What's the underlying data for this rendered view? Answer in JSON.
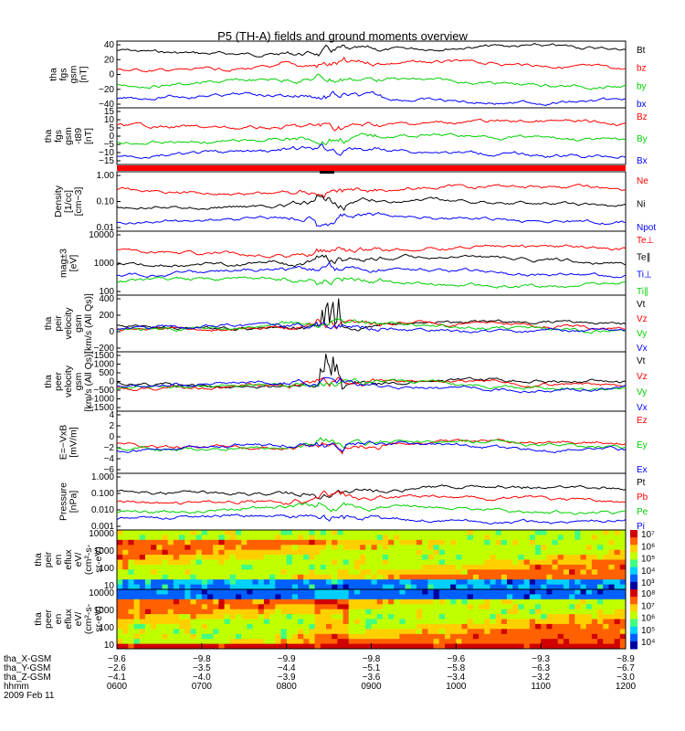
{
  "title": "P5 (TH-A) fields and ground moments overview",
  "colors": {
    "black": "#000000",
    "red": "#ff0000",
    "green": "#00d000",
    "blue": "#0000ff"
  },
  "chart_data": [
    {
      "type": "line",
      "id": "p1",
      "ylabel": [
        "tha",
        "fgs",
        "gsm",
        "[nT]"
      ],
      "ylim": [
        -40,
        40
      ],
      "yticks": [
        "40",
        "20",
        "0",
        "−20",
        "−40"
      ],
      "series": [
        {
          "name": "Bt",
          "color": "black",
          "base": 28
        },
        {
          "name": "bz",
          "color": "red",
          "base": 8
        },
        {
          "name": "by",
          "color": "green",
          "base": -8
        },
        {
          "name": "bx",
          "color": "blue",
          "base": -20
        }
      ]
    },
    {
      "type": "line",
      "id": "p2",
      "ylabel": [
        "tha",
        "fgs",
        "gsm",
        "-t89",
        "[nT]"
      ],
      "ylim": [
        -15,
        15
      ],
      "yticks": [
        "15",
        "10",
        "5",
        "0",
        "−5",
        "−10",
        "−15"
      ],
      "series": [
        {
          "name": "Bz",
          "color": "red"
        },
        {
          "name": "By",
          "color": "green"
        },
        {
          "name": "Bx",
          "color": "blue"
        }
      ]
    },
    {
      "type": "line",
      "id": "p3",
      "ylabel": [
        "Density",
        "[1/cc]",
        "[cm−3]"
      ],
      "ylim": [
        0.01,
        1
      ],
      "log": true,
      "yticks": [
        "1.00",
        "0.10",
        "0.01"
      ],
      "series": [
        {
          "name": "Ne",
          "color": "red"
        },
        {
          "name": "Ni",
          "color": "black"
        },
        {
          "name": "Npot",
          "color": "blue"
        }
      ]
    },
    {
      "type": "line",
      "id": "p4",
      "ylabel": [
        "mag±3",
        "[eV]"
      ],
      "ylim": [
        100,
        10000
      ],
      "log": true,
      "yticks": [
        "10000",
        "1000",
        "100"
      ],
      "series": [
        {
          "name": "Te⊥",
          "color": "red"
        },
        {
          "name": "Te∥",
          "color": "black"
        },
        {
          "name": "Ti⊥",
          "color": "blue"
        },
        {
          "name": "Ti∥",
          "color": "green"
        }
      ]
    },
    {
      "type": "line",
      "id": "p5",
      "ylabel": [
        "tha",
        "peir",
        "velocity",
        "gsm",
        "[km/s (All Qs)]"
      ],
      "ylim": [
        -200,
        600
      ],
      "yticks": [
        "400",
        "200",
        "0",
        "−200"
      ],
      "series": [
        {
          "name": "Vt",
          "color": "black"
        },
        {
          "name": "Vz",
          "color": "red"
        },
        {
          "name": "Vy",
          "color": "green"
        },
        {
          "name": "Vx",
          "color": "blue"
        }
      ]
    },
    {
      "type": "line",
      "id": "p6",
      "ylabel": [
        "tha",
        "peer",
        "velocity",
        "gsm",
        "[km/s (All Qs)]"
      ],
      "ylim": [
        -1500,
        1500
      ],
      "yticks": [
        "1500",
        "1000",
        "500",
        "0",
        "−500",
        "−1000",
        "−1500"
      ],
      "series": [
        {
          "name": "Vt",
          "color": "black"
        },
        {
          "name": "Vz",
          "color": "red"
        },
        {
          "name": "Vy",
          "color": "green"
        },
        {
          "name": "Vx",
          "color": "blue"
        }
      ]
    },
    {
      "type": "line",
      "id": "p7",
      "ylabel": [
        "E=−VxB",
        "[mV/m]"
      ],
      "ylim": [
        -6,
        4
      ],
      "yticks": [
        "4",
        "2",
        "0",
        "−2",
        "−4",
        "−6"
      ],
      "series": [
        {
          "name": "Ez",
          "color": "red"
        },
        {
          "name": "Ey",
          "color": "green"
        },
        {
          "name": "Ex",
          "color": "blue"
        }
      ]
    },
    {
      "type": "line",
      "id": "p8",
      "ylabel": [
        "Pressure",
        "[nPa]"
      ],
      "ylim": [
        0.001,
        1
      ],
      "log": true,
      "yticks": [
        "1.000",
        "0.100",
        "0.010",
        "0.001"
      ],
      "series": [
        {
          "name": "Pt",
          "color": "black"
        },
        {
          "name": "Pb",
          "color": "red"
        },
        {
          "name": "Pe",
          "color": "green"
        },
        {
          "name": "Pi",
          "color": "blue"
        }
      ]
    },
    {
      "type": "heatmap",
      "id": "p9",
      "ylabel": [
        "tha",
        "peir",
        "en",
        "eflux",
        "eV/",
        "(cm²-s-",
        "sr-eV)"
      ],
      "ylim": [
        10,
        30000
      ],
      "log": true,
      "yticks": [
        "10000",
        "1000",
        "100",
        "10"
      ],
      "colorbar": [
        "10⁷",
        "10⁶",
        "10⁵",
        "10⁴",
        "10³"
      ]
    },
    {
      "type": "heatmap",
      "id": "p10",
      "ylabel": [
        "tha",
        "peer",
        "en",
        "eflux",
        "eV/",
        "(cm²-s-",
        "sr-eV)"
      ],
      "ylim": [
        10,
        30000
      ],
      "log": true,
      "yticks": [
        "10000",
        "1000",
        "100",
        "10"
      ],
      "colorbar": [
        "10⁸",
        "10⁷",
        "10⁶",
        "10⁵",
        "10⁴"
      ]
    }
  ],
  "xaxis": {
    "labels": [
      "0600",
      "0700",
      "0800",
      "0900",
      "1000",
      "1100",
      "1200"
    ],
    "rows": [
      {
        "name": "tha_X-GSM",
        "values": [
          "−9.6",
          "−9.8",
          "−9.9",
          "−9.8",
          "−9.6",
          "−9.3",
          "−8.9"
        ]
      },
      {
        "name": "tha_Y-GSM",
        "values": [
          "−2.6",
          "−3.5",
          "−4.4",
          "−5.1",
          "−5.8",
          "−6.3",
          "−6.7"
        ]
      },
      {
        "name": "tha_Z-GSM",
        "values": [
          "−4.1",
          "−4.0",
          "−3.9",
          "−3.6",
          "−3.4",
          "−3.2",
          "−3.0"
        ]
      }
    ],
    "hhmm_label": "hhmm",
    "date": "2009 Feb 11"
  }
}
